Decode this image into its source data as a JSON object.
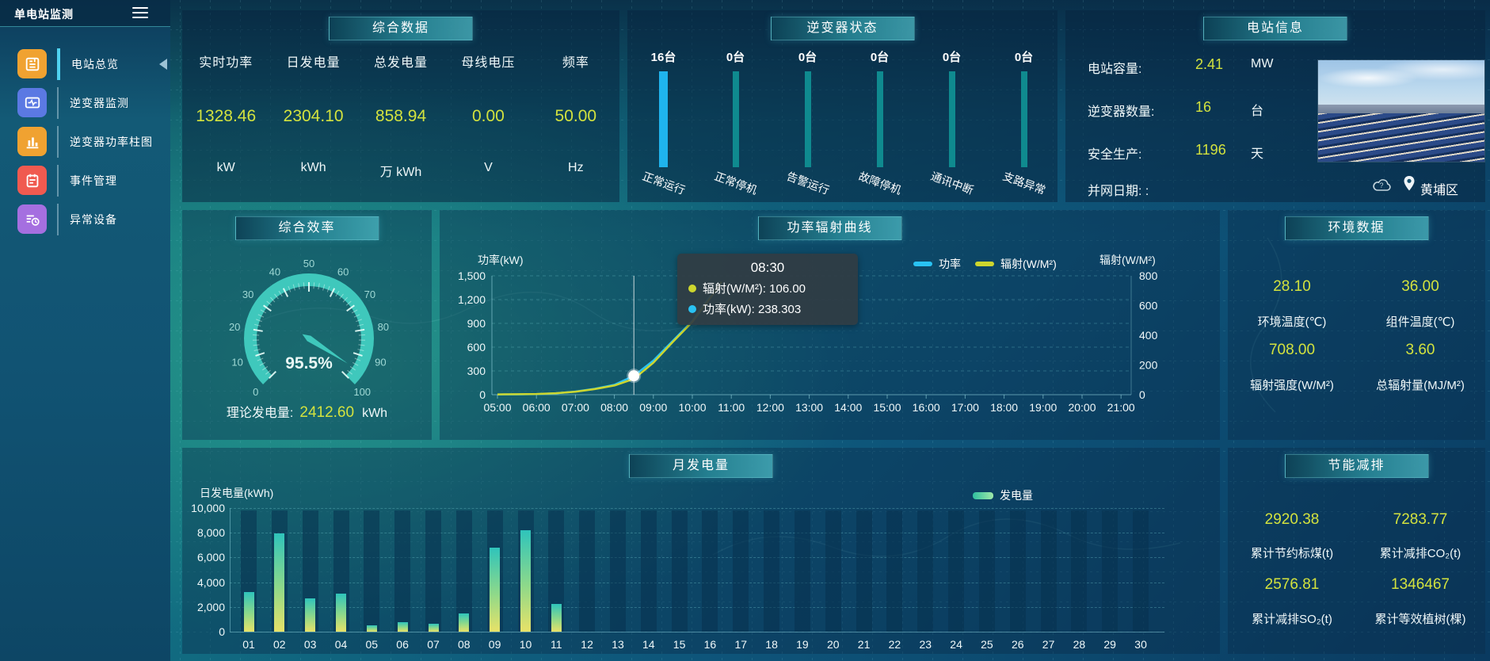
{
  "app": {
    "title": "单电站监测"
  },
  "sidebar": {
    "items": [
      {
        "label": "电站总览",
        "icon": "station-overview-icon",
        "active": true
      },
      {
        "label": "逆变器监测",
        "icon": "inverter-monitor-icon",
        "active": false
      },
      {
        "label": "逆变器功率柱图",
        "icon": "inverter-power-bars-icon",
        "active": false
      },
      {
        "label": "事件管理",
        "icon": "event-management-icon",
        "active": false
      },
      {
        "label": "异常设备",
        "icon": "abnormal-device-icon",
        "active": false
      }
    ]
  },
  "summary": {
    "title": "综合数据",
    "metrics": [
      {
        "label": "实时功率",
        "value": "1328.46",
        "unit": "kW"
      },
      {
        "label": "日发电量",
        "value": "2304.10",
        "unit": "kWh"
      },
      {
        "label": "总发电量",
        "value": "858.94",
        "unit": "万 kWh"
      },
      {
        "label": "母线电压",
        "value": "0.00",
        "unit": "V"
      },
      {
        "label": "频率",
        "value": "50.00",
        "unit": "Hz"
      }
    ]
  },
  "inverter_status": {
    "title": "逆变器状态",
    "statuses": [
      {
        "count": "16台",
        "label": "正常运行",
        "highlight": true
      },
      {
        "count": "0台",
        "label": "正常停机",
        "highlight": false
      },
      {
        "count": "0台",
        "label": "告警运行",
        "highlight": false
      },
      {
        "count": "0台",
        "label": "故障停机",
        "highlight": false
      },
      {
        "count": "0台",
        "label": "通讯中断",
        "highlight": false
      },
      {
        "count": "0台",
        "label": "支路异常",
        "highlight": false
      }
    ],
    "highlight_color": "#1fb4ee",
    "normal_color": "#0f8a8f"
  },
  "station_info": {
    "title": "电站信息",
    "rows": [
      {
        "label": "电站容量:",
        "value": "2.41",
        "unit": "MW"
      },
      {
        "label": "逆变器数量:",
        "value": "16",
        "unit": "台"
      },
      {
        "label": "安全生产:",
        "value": "1196",
        "unit": "天"
      }
    ],
    "grid_date_label": "并网日期:  :",
    "location": "黄埔区"
  },
  "efficiency": {
    "title": "综合效率",
    "footer_label": "理论发电量:",
    "footer_value": "2412.60",
    "footer_unit": "kWh"
  },
  "environment": {
    "title": "环境数据",
    "metrics": [
      {
        "value": "28.10",
        "label": "环境温度(℃)"
      },
      {
        "value": "36.00",
        "label": "组件温度(℃)"
      },
      {
        "value": "708.00",
        "label": "辐射强度(W/M²)"
      },
      {
        "value": "3.60",
        "label": "总辐射量(MJ/M²)"
      }
    ]
  },
  "saving": {
    "title": "节能减排",
    "metrics": [
      {
        "value": "2920.38",
        "label": "累计节约标煤(t)"
      },
      {
        "value": "7283.77",
        "label": "累计减排CO₂(t)"
      },
      {
        "value": "2576.81",
        "label": "累计减排SO₂(t)"
      },
      {
        "value": "1346467",
        "label": "累计等效植树(棵)"
      }
    ]
  },
  "colors": {
    "value_yellow": "#d3e23e",
    "gauge_teal": "#3fc8bc",
    "power_line": "#29c2f2",
    "radiation_line": "#cdd62e"
  },
  "chart_data": [
    {
      "id": "power_radiation_curve",
      "type": "line",
      "title": "功率辐射曲线",
      "x_ticks": [
        "05:00",
        "06:00",
        "07:00",
        "08:00",
        "09:00",
        "10:00",
        "11:00",
        "12:00",
        "13:00",
        "14:00",
        "15:00",
        "16:00",
        "17:00",
        "18:00",
        "19:00",
        "20:00",
        "21:00"
      ],
      "x_range": [
        5,
        21
      ],
      "left_axis": {
        "label": "功率(kW)",
        "ticks": [
          "0",
          "300",
          "600",
          "900",
          "1,200",
          "1,500"
        ],
        "max": 1500
      },
      "right_axis": {
        "label": "辐射(W/M²)",
        "ticks": [
          "0",
          "200",
          "400",
          "600",
          "800"
        ],
        "max": 800
      },
      "legend": [
        {
          "name": "功率",
          "color": "#29c2f2"
        },
        {
          "name": "辐射(W/M²)",
          "color": "#cdd62e"
        }
      ],
      "series": [
        {
          "name": "功率",
          "axis": "left",
          "color": "#29c2f2",
          "points": [
            [
              5,
              3
            ],
            [
              5.5,
              4
            ],
            [
              6,
              8
            ],
            [
              6.5,
              18
            ],
            [
              7,
              40
            ],
            [
              7.5,
              75
            ],
            [
              8,
              125
            ],
            [
              8.5,
              238.3
            ],
            [
              9,
              430
            ],
            [
              9.5,
              680
            ],
            [
              10,
              930
            ],
            [
              10.5,
              1270
            ],
            [
              10.75,
              1400
            ]
          ]
        },
        {
          "name": "辐射(W/M²)",
          "axis": "right",
          "color": "#cdd62e",
          "points": [
            [
              5,
              2
            ],
            [
              5.5,
              3
            ],
            [
              6,
              5
            ],
            [
              6.5,
              10
            ],
            [
              7,
              20
            ],
            [
              7.5,
              38
            ],
            [
              8,
              62
            ],
            [
              8.5,
              106
            ],
            [
              9,
              215
            ],
            [
              9.5,
              355
            ],
            [
              10,
              490
            ],
            [
              10.5,
              665
            ],
            [
              10.75,
              760
            ]
          ]
        }
      ],
      "tooltip": {
        "time": "08:30",
        "x": 8.5,
        "marker_value": 238.3,
        "rows": [
          {
            "dot": "#cdd62e",
            "text": "辐射(W/M²): 106.00"
          },
          {
            "dot": "#29c2f2",
            "text": "功率(kW): 238.303"
          }
        ]
      },
      "grid": true,
      "legend_position": "top-center"
    },
    {
      "id": "monthly_energy",
      "type": "bar",
      "title": "月发电量",
      "ylabel": "日发电量(kWh)",
      "y_ticks": [
        "0",
        "2,000",
        "4,000",
        "6,000",
        "8,000",
        "10,000"
      ],
      "ylim": [
        0,
        10000
      ],
      "track_value": 9800,
      "legend": "发电量",
      "categories": [
        "01",
        "02",
        "03",
        "04",
        "05",
        "06",
        "07",
        "08",
        "09",
        "10",
        "11",
        "12",
        "13",
        "14",
        "15",
        "16",
        "17",
        "18",
        "19",
        "20",
        "21",
        "22",
        "23",
        "24",
        "25",
        "26",
        "27",
        "28",
        "29",
        "30"
      ],
      "values": [
        3200,
        7950,
        2700,
        3050,
        500,
        750,
        650,
        1450,
        6800,
        8200,
        2250,
        0,
        0,
        0,
        0,
        0,
        0,
        0,
        0,
        0,
        0,
        0,
        0,
        0,
        0,
        0,
        0,
        0,
        0,
        0
      ]
    },
    {
      "id": "efficiency_gauge",
      "type": "gauge",
      "title": "综合效率",
      "value": 95.5,
      "value_label": "95.5%",
      "min": 0,
      "max": 100,
      "tick_step": 10
    },
    {
      "id": "inverter_status_bars",
      "type": "bar",
      "title": "逆变器状态",
      "categories": [
        "正常运行",
        "正常停机",
        "告警运行",
        "故障停机",
        "通讯中断",
        "支路异常"
      ],
      "values": [
        16,
        0,
        0,
        0,
        0,
        0
      ],
      "unit": "台"
    }
  ]
}
